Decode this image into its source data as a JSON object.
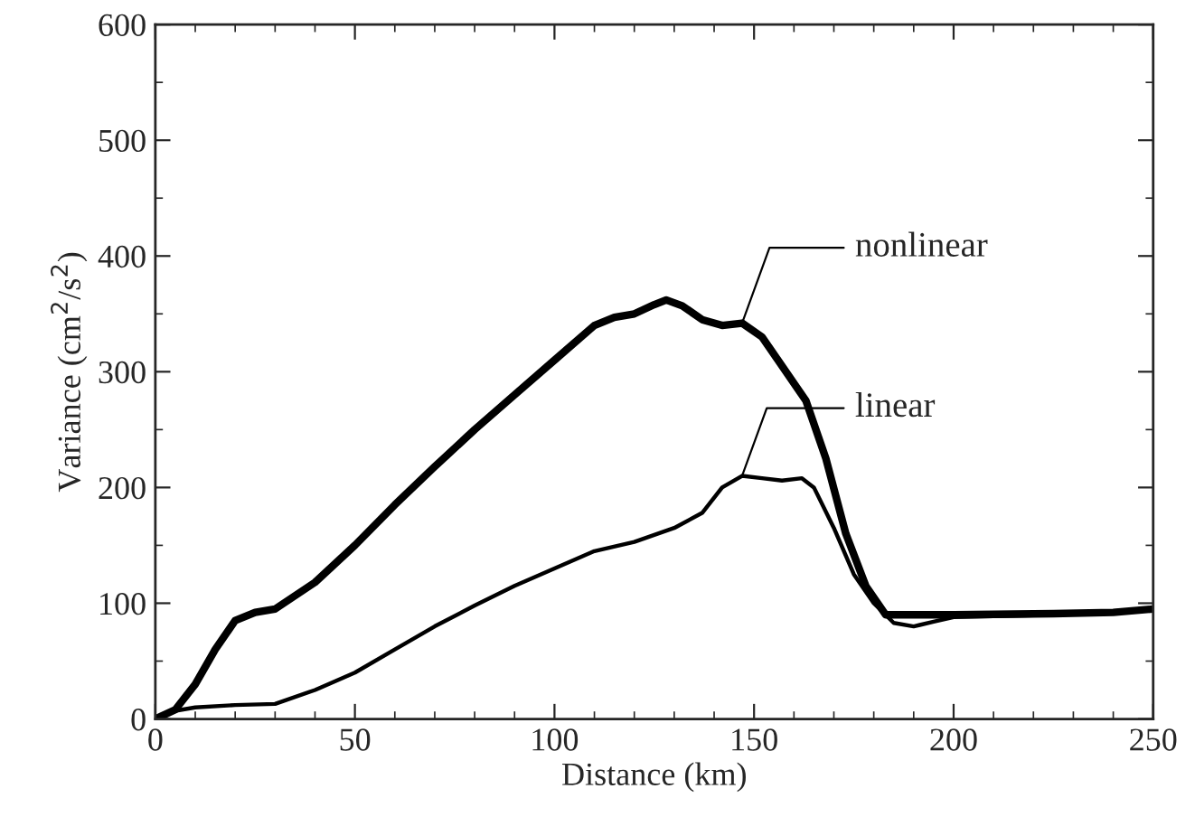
{
  "chart_data": {
    "type": "line",
    "xlabel": "Distance (km)",
    "ylabel": "Variance (cm$^{2}$/s$^{2}$)",
    "xlim": [
      0,
      250
    ],
    "xticks": [
      0,
      50,
      100,
      150,
      200,
      250
    ],
    "ylim": [
      0,
      600
    ],
    "yticks": [
      0,
      100,
      200,
      300,
      400,
      500,
      600
    ],
    "grid": false,
    "legend": false,
    "marker": "none",
    "line_style": "solid",
    "series": [
      {
        "name": "nonlinear",
        "color": "#000000",
        "x": [
          0,
          5,
          10,
          15,
          20,
          25,
          30,
          40,
          50,
          60,
          70,
          80,
          90,
          100,
          110,
          115,
          120,
          125,
          128,
          132,
          137,
          142,
          147,
          152,
          157,
          163,
          168,
          173,
          178,
          183,
          190,
          200,
          225,
          240,
          250
        ],
        "values": [
          0,
          8,
          30,
          60,
          85,
          92,
          95,
          118,
          150,
          185,
          218,
          250,
          280,
          310,
          340,
          347,
          350,
          358,
          362,
          357,
          345,
          340,
          342,
          330,
          305,
          275,
          225,
          160,
          115,
          90,
          90,
          90,
          91,
          92,
          95
        ]
      },
      {
        "name": "linear",
        "color": "#000000",
        "x": [
          0,
          5,
          10,
          20,
          30,
          40,
          50,
          60,
          70,
          80,
          90,
          100,
          110,
          120,
          130,
          137,
          142,
          147,
          152,
          157,
          162,
          165,
          170,
          175,
          180,
          185,
          190,
          195,
          200,
          225,
          250
        ],
        "values": [
          0,
          7,
          10,
          12,
          13,
          25,
          40,
          60,
          80,
          98,
          115,
          130,
          145,
          153,
          165,
          178,
          200,
          210,
          208,
          206,
          208,
          200,
          165,
          125,
          100,
          83,
          80,
          84,
          88,
          90,
          95
        ]
      }
    ]
  }
}
